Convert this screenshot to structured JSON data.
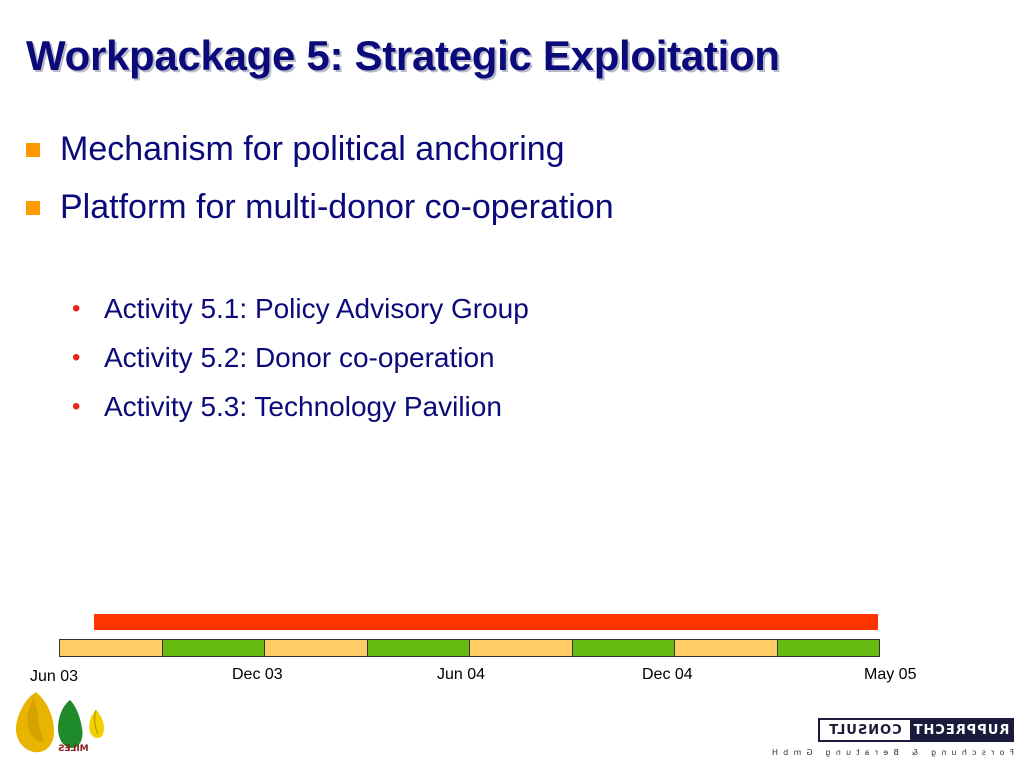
{
  "slide": {
    "title": "Workpackage 5: Strategic Exploitation",
    "title_color": "#0a0a7a",
    "main_bullets": [
      {
        "text": "Mechanism for political anchoring"
      },
      {
        "text": "Platform for multi-donor co-operation"
      }
    ],
    "main_bullet_color": "#ff9900",
    "sub_bullets": [
      {
        "text": "Activity 5.1: Policy Advisory Group"
      },
      {
        "text": "Activity 5.2: Donor co-operation"
      },
      {
        "text": "Activity 5.3: Technology Pavilion"
      }
    ],
    "sub_bullet_color": "#e8241a"
  },
  "timeline": {
    "bar_color": "#ff3300",
    "segment_colors": [
      "#ffcc66",
      "#66bb11",
      "#ffcc66",
      "#66bb11",
      "#ffcc66",
      "#66bb11",
      "#ffcc66",
      "#66bb11"
    ],
    "labels": [
      "Jun 03",
      "Dec 03",
      "Jun 04",
      "Dec 04",
      "May 05"
    ]
  },
  "logos": {
    "left": {
      "text": "MILES",
      "icon": "sri-lanka-map-logo-icon"
    },
    "right": {
      "line1a": "RUPPRECHT",
      "line1b": "CONSULT",
      "line2": "Forschung & Beratung GmbH",
      "icon": "rupprecht-consult-logo-icon"
    }
  }
}
